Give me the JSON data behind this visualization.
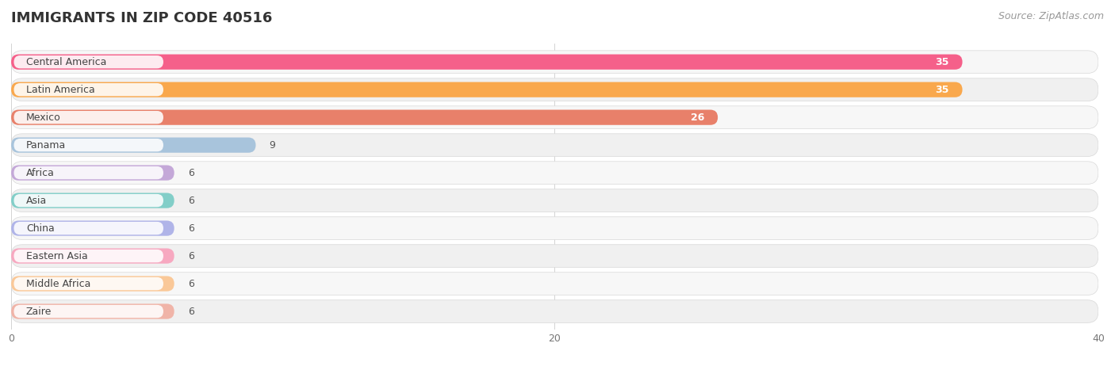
{
  "title": "IMMIGRANTS IN ZIP CODE 40516",
  "source": "Source: ZipAtlas.com",
  "categories": [
    "Central America",
    "Latin America",
    "Mexico",
    "Panama",
    "Africa",
    "Asia",
    "China",
    "Eastern Asia",
    "Middle Africa",
    "Zaire"
  ],
  "values": [
    35,
    35,
    26,
    9,
    6,
    6,
    6,
    6,
    6,
    6
  ],
  "bar_colors": [
    "#F5608A",
    "#F9A84D",
    "#E8806A",
    "#A8C4DC",
    "#C4A8D8",
    "#82CEC8",
    "#B0B4E8",
    "#F7A8C0",
    "#FAC898",
    "#F0B4A8"
  ],
  "xlim": [
    0,
    40
  ],
  "xticks": [
    0,
    20,
    40
  ],
  "background_color": "#ffffff",
  "row_bg_even": "#f5f5f5",
  "row_bg_odd": "#ececec",
  "title_fontsize": 13,
  "source_fontsize": 9,
  "label_fontsize": 9,
  "value_fontsize": 9
}
